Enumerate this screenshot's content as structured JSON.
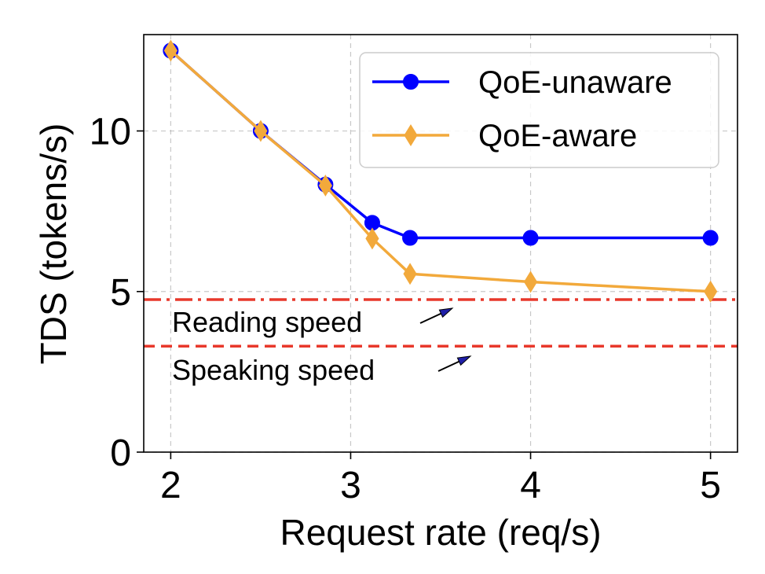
{
  "chart_data": {
    "type": "line",
    "xlabel": "Request rate (req/s)",
    "ylabel": "TDS (tokens/s)",
    "xlim": [
      1.85,
      5.15
    ],
    "ylim": [
      0,
      13.0
    ],
    "xticks": [
      2,
      3,
      4,
      5
    ],
    "yticks": [
      0,
      5,
      10
    ],
    "grid": true,
    "legend_position": "top-right",
    "series": [
      {
        "name": "QoE-unaware",
        "color": "#0000ff",
        "marker": "circle",
        "x": [
          2.0,
          2.5,
          2.86,
          3.12,
          3.33,
          4.0,
          5.0
        ],
        "y": [
          12.5,
          10.0,
          8.33,
          7.14,
          6.67,
          6.67,
          6.67
        ]
      },
      {
        "name": "QoE-aware",
        "color": "#f2a93b",
        "marker": "thin_diamond",
        "x": [
          2.0,
          2.5,
          2.86,
          3.12,
          3.33,
          4.0,
          5.0
        ],
        "y": [
          12.5,
          10.0,
          8.3,
          6.65,
          5.55,
          5.3,
          5.0
        ]
      }
    ],
    "reference_lines": [
      {
        "label": "Reading speed",
        "y": 4.75,
        "style": "dashdot",
        "color": "#e8382b"
      },
      {
        "label": "Speaking speed",
        "y": 3.3,
        "style": "dashed",
        "color": "#e8382b"
      }
    ]
  }
}
